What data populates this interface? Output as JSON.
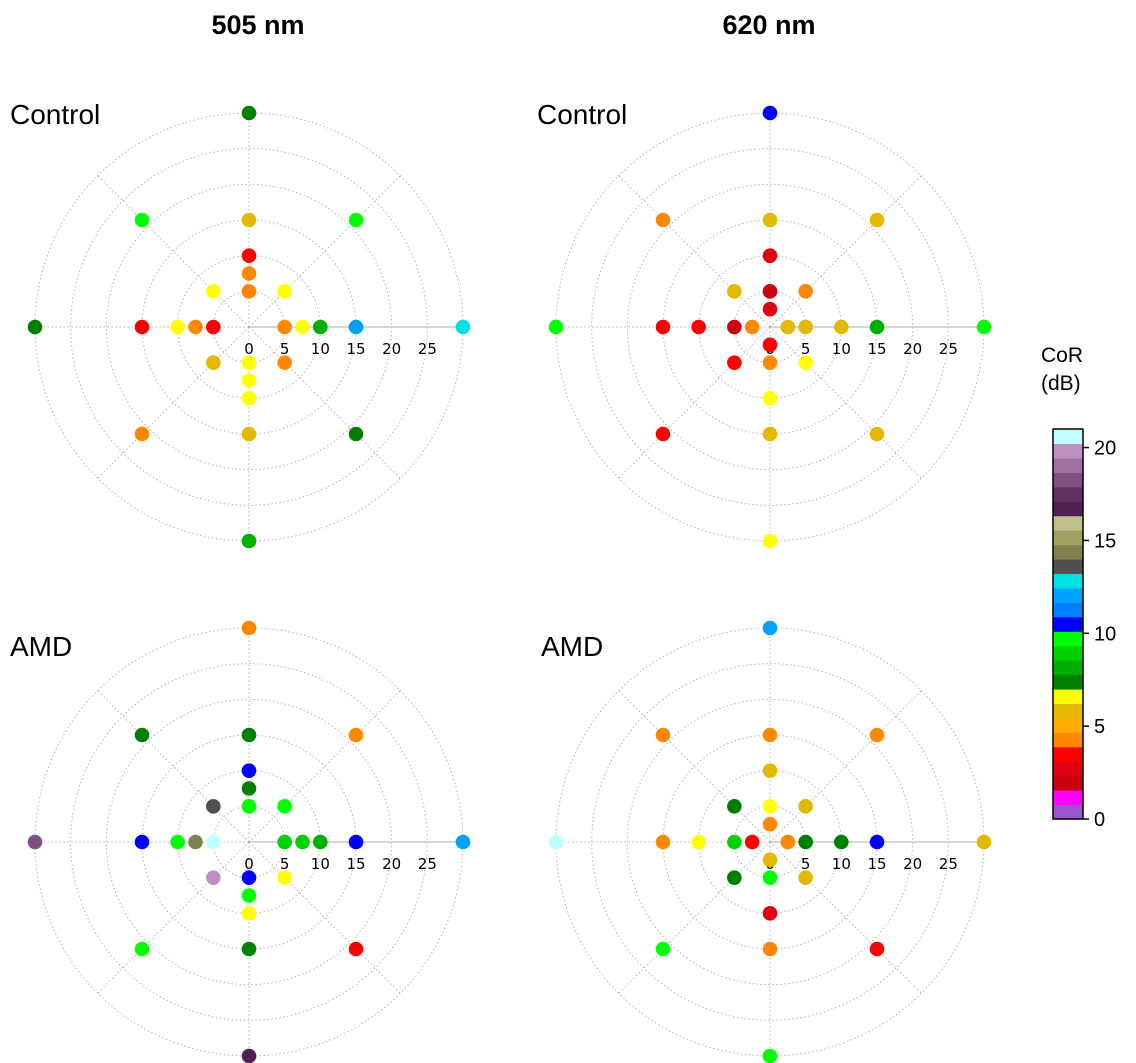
{
  "figure": {
    "col_titles": [
      "505 nm",
      "620 nm"
    ],
    "row_labels": [
      "Control",
      "AMD"
    ]
  },
  "colorbar": {
    "label_line1": "CoR",
    "label_line2": "(dB)",
    "range": [
      0,
      21
    ],
    "ticks": [
      "0",
      "5",
      "10",
      "15",
      "20"
    ],
    "tick_values": [
      0,
      5,
      10,
      15,
      20
    ],
    "colors": [
      "#9955cc",
      "#ff00ff",
      "#c80010",
      "#e00010",
      "#ff0000",
      "#ff8800",
      "#ffaa00",
      "#e2b800",
      "#ffff00",
      "#008000",
      "#00b000",
      "#00d000",
      "#00ff00",
      "#0000ff",
      "#0080ff",
      "#00a0ff",
      "#00e0e0",
      "#505050",
      "#808050",
      "#a0a060",
      "#c0c090",
      "#502050",
      "#603060",
      "#805080",
      "#a070a0",
      "#c090c0",
      "#c0ffff"
    ]
  },
  "chart_data": [
    {
      "type": "scatter",
      "coordinate_system": "polar",
      "title": "505 nm",
      "panel_label": "Control",
      "radial_ticks": [
        "0",
        "5",
        "10",
        "15",
        "20",
        "25"
      ],
      "rlim": [
        0,
        30
      ],
      "angles_deg": [
        0,
        45,
        90,
        135,
        180,
        225,
        270,
        315
      ],
      "grid": true,
      "points": [
        {
          "x": 0,
          "y": 30,
          "color": "#008000"
        },
        {
          "x": -15,
          "y": 15,
          "color": "#00ff00"
        },
        {
          "x": 15,
          "y": 15,
          "color": "#00ff00"
        },
        {
          "x": 0,
          "y": 15,
          "color": "#e2b800"
        },
        {
          "x": 0,
          "y": 10,
          "color": "#ff0000"
        },
        {
          "x": 0,
          "y": 7.5,
          "color": "#ff8800"
        },
        {
          "x": 0,
          "y": 5,
          "color": "#ff8800"
        },
        {
          "x": -5,
          "y": 5,
          "color": "#ffff00"
        },
        {
          "x": 5,
          "y": 5,
          "color": "#ffff00"
        },
        {
          "x": -30,
          "y": 0,
          "color": "#008000"
        },
        {
          "x": -15,
          "y": 0,
          "color": "#ff0000"
        },
        {
          "x": -10,
          "y": 0,
          "color": "#ffff00"
        },
        {
          "x": -7.5,
          "y": 0,
          "color": "#ff8800"
        },
        {
          "x": -5,
          "y": 0,
          "color": "#ff0000"
        },
        {
          "x": 5,
          "y": 0,
          "color": "#ff8800"
        },
        {
          "x": 7.5,
          "y": 0,
          "color": "#ffff00"
        },
        {
          "x": 10,
          "y": 0,
          "color": "#00b000"
        },
        {
          "x": 15,
          "y": 0,
          "color": "#00a0ff"
        },
        {
          "x": 30,
          "y": 0,
          "color": "#00e0e0"
        },
        {
          "x": -5,
          "y": -5,
          "color": "#e2b800"
        },
        {
          "x": 5,
          "y": -5,
          "color": "#ff8800"
        },
        {
          "x": 0,
          "y": -5,
          "color": "#ffff00"
        },
        {
          "x": 0,
          "y": -7.5,
          "color": "#ffff00"
        },
        {
          "x": 0,
          "y": -10,
          "color": "#ffff00"
        },
        {
          "x": -15,
          "y": -15,
          "color": "#ff8800"
        },
        {
          "x": 15,
          "y": -15,
          "color": "#008000"
        },
        {
          "x": 0,
          "y": -15,
          "color": "#e2b800"
        },
        {
          "x": 0,
          "y": -30,
          "color": "#00b000"
        }
      ]
    },
    {
      "type": "scatter",
      "coordinate_system": "polar",
      "title": "620 nm",
      "panel_label": "Control",
      "radial_ticks": [
        "0",
        "5",
        "10",
        "15",
        "20",
        "25"
      ],
      "rlim": [
        0,
        30
      ],
      "angles_deg": [
        0,
        45,
        90,
        135,
        180,
        225,
        270,
        315
      ],
      "grid": true,
      "points": [
        {
          "x": 0,
          "y": 30,
          "color": "#0000ff"
        },
        {
          "x": -15,
          "y": 15,
          "color": "#ff8800"
        },
        {
          "x": 15,
          "y": 15,
          "color": "#e2b800"
        },
        {
          "x": 0,
          "y": 15,
          "color": "#e2b800"
        },
        {
          "x": 0,
          "y": 10,
          "color": "#e00010"
        },
        {
          "x": -5,
          "y": 5,
          "color": "#e2b800"
        },
        {
          "x": 5,
          "y": 5,
          "color": "#ff8800"
        },
        {
          "x": 0,
          "y": 5,
          "color": "#c80010"
        },
        {
          "x": 0,
          "y": 2.5,
          "color": "#e00010"
        },
        {
          "x": -30,
          "y": 0,
          "color": "#00ff00"
        },
        {
          "x": -15,
          "y": 0,
          "color": "#ff0000"
        },
        {
          "x": -10,
          "y": 0,
          "color": "#ff0000"
        },
        {
          "x": -5,
          "y": 0,
          "color": "#c80010"
        },
        {
          "x": -2.5,
          "y": 0,
          "color": "#ff8800"
        },
        {
          "x": 2.5,
          "y": 0,
          "color": "#e2b800"
        },
        {
          "x": 5,
          "y": 0,
          "color": "#e2b800"
        },
        {
          "x": 10,
          "y": 0,
          "color": "#e2b800"
        },
        {
          "x": 15,
          "y": 0,
          "color": "#00b000"
        },
        {
          "x": 30,
          "y": 0,
          "color": "#00ff00"
        },
        {
          "x": 0,
          "y": -2.5,
          "color": "#ff0000"
        },
        {
          "x": -5,
          "y": -5,
          "color": "#ff0000"
        },
        {
          "x": 5,
          "y": -5,
          "color": "#ffff00"
        },
        {
          "x": 0,
          "y": -5,
          "color": "#ff8800"
        },
        {
          "x": 0,
          "y": -10,
          "color": "#ffff00"
        },
        {
          "x": -15,
          "y": -15,
          "color": "#ff0000"
        },
        {
          "x": 15,
          "y": -15,
          "color": "#e2b800"
        },
        {
          "x": 0,
          "y": -15,
          "color": "#e2b800"
        },
        {
          "x": 0,
          "y": -30,
          "color": "#ffff00"
        }
      ]
    },
    {
      "type": "scatter",
      "coordinate_system": "polar",
      "title": "505 nm",
      "panel_label": "AMD",
      "radial_ticks": [
        "0",
        "5",
        "10",
        "15",
        "20",
        "25"
      ],
      "rlim": [
        0,
        30
      ],
      "angles_deg": [
        0,
        45,
        90,
        135,
        180,
        225,
        270,
        315
      ],
      "grid": true,
      "points": [
        {
          "x": 0,
          "y": 30,
          "color": "#ff8800"
        },
        {
          "x": -15,
          "y": 15,
          "color": "#008000"
        },
        {
          "x": 15,
          "y": 15,
          "color": "#ff8800"
        },
        {
          "x": 0,
          "y": 15,
          "color": "#008000"
        },
        {
          "x": 0,
          "y": 10,
          "color": "#0000ff"
        },
        {
          "x": 0,
          "y": 7.5,
          "color": "#008000"
        },
        {
          "x": -5,
          "y": 5,
          "color": "#505050"
        },
        {
          "x": 5,
          "y": 5,
          "color": "#00ff00"
        },
        {
          "x": 0,
          "y": 5,
          "color": "#00ff00"
        },
        {
          "x": -30,
          "y": 0,
          "color": "#805080"
        },
        {
          "x": -15,
          "y": 0,
          "color": "#0000ff"
        },
        {
          "x": -10,
          "y": 0,
          "color": "#00ff00"
        },
        {
          "x": -7.5,
          "y": 0,
          "color": "#808050"
        },
        {
          "x": -5,
          "y": 0,
          "color": "#c0ffff"
        },
        {
          "x": 5,
          "y": 0,
          "color": "#00d000"
        },
        {
          "x": 7.5,
          "y": 0,
          "color": "#00d000"
        },
        {
          "x": 10,
          "y": 0,
          "color": "#00b000"
        },
        {
          "x": 15,
          "y": 0,
          "color": "#0000ff"
        },
        {
          "x": 30,
          "y": 0,
          "color": "#00a0ff"
        },
        {
          "x": -5,
          "y": -5,
          "color": "#c090c0"
        },
        {
          "x": 5,
          "y": -5,
          "color": "#ffff00"
        },
        {
          "x": 0,
          "y": -5,
          "color": "#0000ff"
        },
        {
          "x": 0,
          "y": -7.5,
          "color": "#00ff00"
        },
        {
          "x": 0,
          "y": -10,
          "color": "#ffff00"
        },
        {
          "x": -15,
          "y": -15,
          "color": "#00ff00"
        },
        {
          "x": 15,
          "y": -15,
          "color": "#ff0000"
        },
        {
          "x": 0,
          "y": -15,
          "color": "#008000"
        },
        {
          "x": 0,
          "y": -30,
          "color": "#502050"
        }
      ]
    },
    {
      "type": "scatter",
      "coordinate_system": "polar",
      "title": "620 nm",
      "panel_label": "AMD",
      "radial_ticks": [
        "0",
        "5",
        "10",
        "15",
        "20",
        "25"
      ],
      "rlim": [
        0,
        30
      ],
      "angles_deg": [
        0,
        45,
        90,
        135,
        180,
        225,
        270,
        315
      ],
      "grid": true,
      "points": [
        {
          "x": 0,
          "y": 30,
          "color": "#00a0ff"
        },
        {
          "x": -15,
          "y": 15,
          "color": "#ff8800"
        },
        {
          "x": 15,
          "y": 15,
          "color": "#ff8800"
        },
        {
          "x": 0,
          "y": 15,
          "color": "#ff8800"
        },
        {
          "x": 0,
          "y": 10,
          "color": "#e2b800"
        },
        {
          "x": -5,
          "y": 5,
          "color": "#008000"
        },
        {
          "x": 5,
          "y": 5,
          "color": "#e2b800"
        },
        {
          "x": 0,
          "y": 5,
          "color": "#ffff00"
        },
        {
          "x": 0,
          "y": 2.5,
          "color": "#ff8800"
        },
        {
          "x": -30,
          "y": 0,
          "color": "#c0ffff"
        },
        {
          "x": -15,
          "y": 0,
          "color": "#ff8800"
        },
        {
          "x": -10,
          "y": 0,
          "color": "#ffff00"
        },
        {
          "x": -5,
          "y": 0,
          "color": "#00d000"
        },
        {
          "x": -2.5,
          "y": 0,
          "color": "#ff0000"
        },
        {
          "x": 2.5,
          "y": 0,
          "color": "#ff8800"
        },
        {
          "x": 5,
          "y": 0,
          "color": "#008000"
        },
        {
          "x": 10,
          "y": 0,
          "color": "#008000"
        },
        {
          "x": 15,
          "y": 0,
          "color": "#0000ff"
        },
        {
          "x": 30,
          "y": 0,
          "color": "#e2b800"
        },
        {
          "x": 0,
          "y": -2.5,
          "color": "#e2b800"
        },
        {
          "x": -5,
          "y": -5,
          "color": "#008000"
        },
        {
          "x": 5,
          "y": -5,
          "color": "#e2b800"
        },
        {
          "x": 0,
          "y": -5,
          "color": "#00ff00"
        },
        {
          "x": 0,
          "y": -10,
          "color": "#e00010"
        },
        {
          "x": -15,
          "y": -15,
          "color": "#00ff00"
        },
        {
          "x": 15,
          "y": -15,
          "color": "#ff0000"
        },
        {
          "x": 0,
          "y": -15,
          "color": "#ff8800"
        },
        {
          "x": 0,
          "y": -30,
          "color": "#00ff00"
        }
      ]
    }
  ]
}
